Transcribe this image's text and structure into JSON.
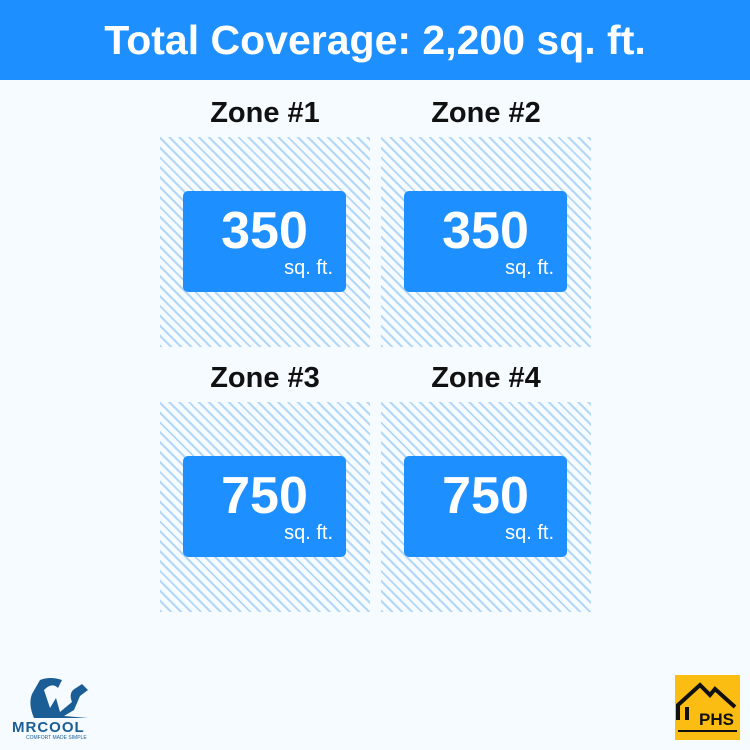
{
  "header": {
    "title": "Total Coverage: 2,200 sq. ft."
  },
  "zones": [
    {
      "title": "Zone #1",
      "value": "350",
      "unit": "sq. ft."
    },
    {
      "title": "Zone #2",
      "value": "350",
      "unit": "sq. ft."
    },
    {
      "title": "Zone #3",
      "value": "750",
      "unit": "sq. ft."
    },
    {
      "title": "Zone #4",
      "value": "750",
      "unit": "sq. ft."
    }
  ],
  "logos": {
    "left": "MRCOOL",
    "left_tagline": "COMFORT MADE SIMPLE",
    "right": "PHS"
  },
  "colors": {
    "accent": "#1e8fff",
    "hatch": "#b3d7f7",
    "phs": "#fbbd12",
    "mrcool": "#1b5e96"
  }
}
